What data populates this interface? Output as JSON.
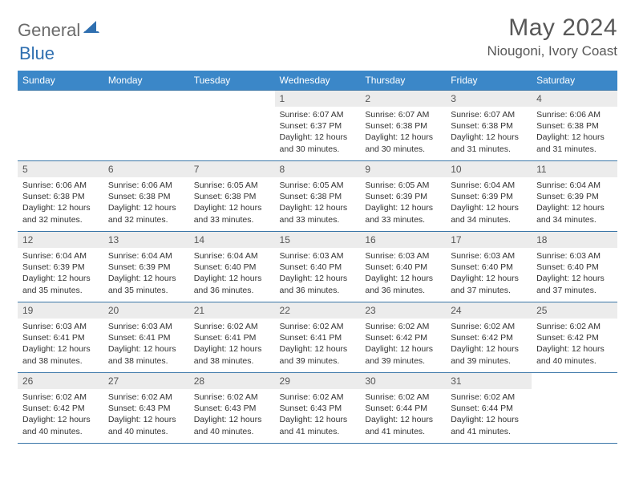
{
  "logo": {
    "word1": "General",
    "word2": "Blue"
  },
  "title": "May 2024",
  "location": "Niougoni, Ivory Coast",
  "colors": {
    "header_bg": "#3b87c8",
    "header_text": "#ffffff",
    "border": "#3b77a8",
    "daynum_bg": "#ececec",
    "daynum_text": "#555555",
    "body_text": "#333333",
    "logo_gray": "#6b6b6b",
    "logo_blue": "#2f6fb0",
    "title_color": "#585858"
  },
  "weekdays": [
    "Sunday",
    "Monday",
    "Tuesday",
    "Wednesday",
    "Thursday",
    "Friday",
    "Saturday"
  ],
  "weeks": [
    [
      {
        "empty": true
      },
      {
        "empty": true
      },
      {
        "empty": true
      },
      {
        "day": "1",
        "sunrise": "6:07 AM",
        "sunset": "6:37 PM",
        "daylight": "12 hours and 30 minutes."
      },
      {
        "day": "2",
        "sunrise": "6:07 AM",
        "sunset": "6:38 PM",
        "daylight": "12 hours and 30 minutes."
      },
      {
        "day": "3",
        "sunrise": "6:07 AM",
        "sunset": "6:38 PM",
        "daylight": "12 hours and 31 minutes."
      },
      {
        "day": "4",
        "sunrise": "6:06 AM",
        "sunset": "6:38 PM",
        "daylight": "12 hours and 31 minutes."
      }
    ],
    [
      {
        "day": "5",
        "sunrise": "6:06 AM",
        "sunset": "6:38 PM",
        "daylight": "12 hours and 32 minutes."
      },
      {
        "day": "6",
        "sunrise": "6:06 AM",
        "sunset": "6:38 PM",
        "daylight": "12 hours and 32 minutes."
      },
      {
        "day": "7",
        "sunrise": "6:05 AM",
        "sunset": "6:38 PM",
        "daylight": "12 hours and 33 minutes."
      },
      {
        "day": "8",
        "sunrise": "6:05 AM",
        "sunset": "6:38 PM",
        "daylight": "12 hours and 33 minutes."
      },
      {
        "day": "9",
        "sunrise": "6:05 AM",
        "sunset": "6:39 PM",
        "daylight": "12 hours and 33 minutes."
      },
      {
        "day": "10",
        "sunrise": "6:04 AM",
        "sunset": "6:39 PM",
        "daylight": "12 hours and 34 minutes."
      },
      {
        "day": "11",
        "sunrise": "6:04 AM",
        "sunset": "6:39 PM",
        "daylight": "12 hours and 34 minutes."
      }
    ],
    [
      {
        "day": "12",
        "sunrise": "6:04 AM",
        "sunset": "6:39 PM",
        "daylight": "12 hours and 35 minutes."
      },
      {
        "day": "13",
        "sunrise": "6:04 AM",
        "sunset": "6:39 PM",
        "daylight": "12 hours and 35 minutes."
      },
      {
        "day": "14",
        "sunrise": "6:04 AM",
        "sunset": "6:40 PM",
        "daylight": "12 hours and 36 minutes."
      },
      {
        "day": "15",
        "sunrise": "6:03 AM",
        "sunset": "6:40 PM",
        "daylight": "12 hours and 36 minutes."
      },
      {
        "day": "16",
        "sunrise": "6:03 AM",
        "sunset": "6:40 PM",
        "daylight": "12 hours and 36 minutes."
      },
      {
        "day": "17",
        "sunrise": "6:03 AM",
        "sunset": "6:40 PM",
        "daylight": "12 hours and 37 minutes."
      },
      {
        "day": "18",
        "sunrise": "6:03 AM",
        "sunset": "6:40 PM",
        "daylight": "12 hours and 37 minutes."
      }
    ],
    [
      {
        "day": "19",
        "sunrise": "6:03 AM",
        "sunset": "6:41 PM",
        "daylight": "12 hours and 38 minutes."
      },
      {
        "day": "20",
        "sunrise": "6:03 AM",
        "sunset": "6:41 PM",
        "daylight": "12 hours and 38 minutes."
      },
      {
        "day": "21",
        "sunrise": "6:02 AM",
        "sunset": "6:41 PM",
        "daylight": "12 hours and 38 minutes."
      },
      {
        "day": "22",
        "sunrise": "6:02 AM",
        "sunset": "6:41 PM",
        "daylight": "12 hours and 39 minutes."
      },
      {
        "day": "23",
        "sunrise": "6:02 AM",
        "sunset": "6:42 PM",
        "daylight": "12 hours and 39 minutes."
      },
      {
        "day": "24",
        "sunrise": "6:02 AM",
        "sunset": "6:42 PM",
        "daylight": "12 hours and 39 minutes."
      },
      {
        "day": "25",
        "sunrise": "6:02 AM",
        "sunset": "6:42 PM",
        "daylight": "12 hours and 40 minutes."
      }
    ],
    [
      {
        "day": "26",
        "sunrise": "6:02 AM",
        "sunset": "6:42 PM",
        "daylight": "12 hours and 40 minutes."
      },
      {
        "day": "27",
        "sunrise": "6:02 AM",
        "sunset": "6:43 PM",
        "daylight": "12 hours and 40 minutes."
      },
      {
        "day": "28",
        "sunrise": "6:02 AM",
        "sunset": "6:43 PM",
        "daylight": "12 hours and 40 minutes."
      },
      {
        "day": "29",
        "sunrise": "6:02 AM",
        "sunset": "6:43 PM",
        "daylight": "12 hours and 41 minutes."
      },
      {
        "day": "30",
        "sunrise": "6:02 AM",
        "sunset": "6:44 PM",
        "daylight": "12 hours and 41 minutes."
      },
      {
        "day": "31",
        "sunrise": "6:02 AM",
        "sunset": "6:44 PM",
        "daylight": "12 hours and 41 minutes."
      },
      {
        "empty": true
      }
    ]
  ]
}
